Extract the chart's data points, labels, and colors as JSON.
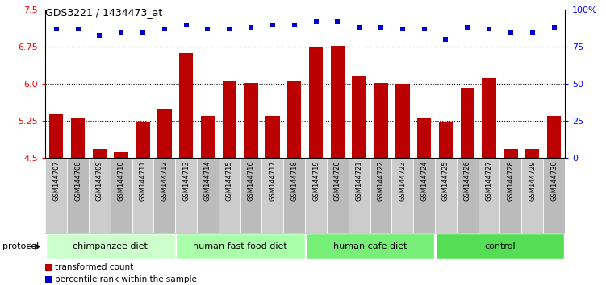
{
  "title": "GDS3221 / 1434473_at",
  "samples": [
    "GSM144707",
    "GSM144708",
    "GSM144709",
    "GSM144710",
    "GSM144711",
    "GSM144712",
    "GSM144713",
    "GSM144714",
    "GSM144715",
    "GSM144716",
    "GSM144717",
    "GSM144718",
    "GSM144719",
    "GSM144720",
    "GSM144721",
    "GSM144722",
    "GSM144723",
    "GSM144724",
    "GSM144725",
    "GSM144726",
    "GSM144727",
    "GSM144728",
    "GSM144729",
    "GSM144730"
  ],
  "bar_values": [
    5.38,
    5.32,
    4.68,
    4.62,
    5.22,
    5.48,
    6.62,
    5.35,
    6.08,
    6.02,
    5.35,
    6.08,
    6.75,
    6.77,
    6.15,
    6.03,
    6.0,
    5.32,
    5.22,
    5.92,
    6.12,
    4.68,
    4.68,
    5.35
  ],
  "percentile_values": [
    87,
    87,
    83,
    85,
    85,
    87,
    90,
    87,
    87,
    88,
    90,
    90,
    92,
    92,
    88,
    88,
    87,
    87,
    80,
    88,
    87,
    85,
    85,
    88
  ],
  "bar_color": "#bb0000",
  "dot_color": "#0000cc",
  "ymin": 4.5,
  "ymax": 7.5,
  "yticks_left": [
    4.5,
    5.25,
    6.0,
    6.75,
    7.5
  ],
  "yticks_right": [
    0,
    25,
    50,
    75,
    100
  ],
  "hlines": [
    5.25,
    6.0,
    6.75
  ],
  "groups": [
    {
      "label": "chimpanzee diet",
      "start": 0,
      "end": 6,
      "color": "#ccffcc"
    },
    {
      "label": "human fast food diet",
      "start": 6,
      "end": 12,
      "color": "#aaffaa"
    },
    {
      "label": "human cafe diet",
      "start": 12,
      "end": 18,
      "color": "#77ee77"
    },
    {
      "label": "control",
      "start": 18,
      "end": 24,
      "color": "#55dd55"
    }
  ],
  "legend_bar_label": "transformed count",
  "legend_dot_label": "percentile rank within the sample",
  "protocol_label": "protocol",
  "cell_colors": [
    "#cccccc",
    "#bbbbbb"
  ]
}
